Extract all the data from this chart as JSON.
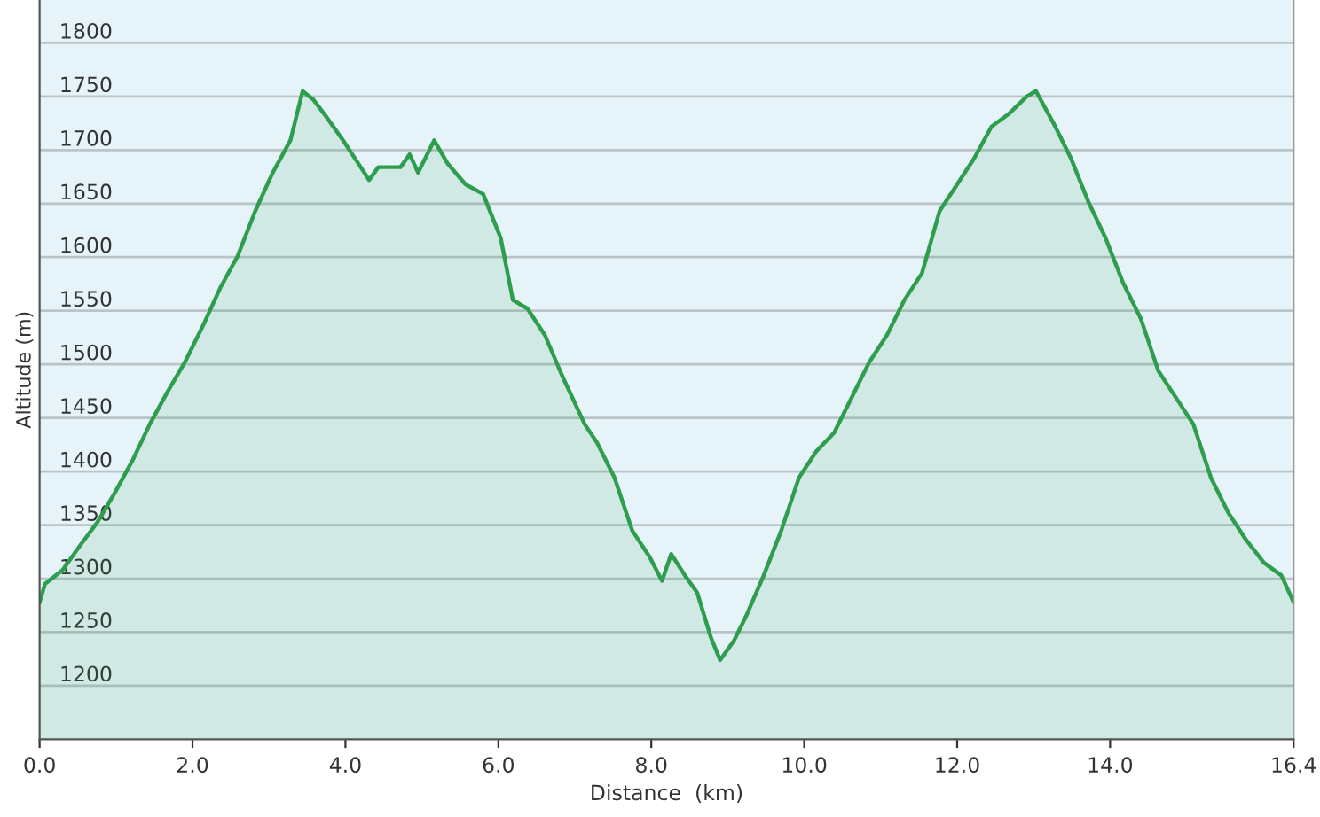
{
  "chart_data": {
    "type": "area",
    "xlabel": "Distance  (km)",
    "ylabel": "Altitude (m)",
    "xlim": [
      0,
      16.4
    ],
    "ylim": [
      1150,
      1840
    ],
    "xticks": [
      {
        "value": 0,
        "label": "0.0"
      },
      {
        "value": 2,
        "label": "2.0"
      },
      {
        "value": 4,
        "label": "4.0"
      },
      {
        "value": 6,
        "label": "6.0"
      },
      {
        "value": 8,
        "label": "8.0"
      },
      {
        "value": 10,
        "label": "10.0"
      },
      {
        "value": 12,
        "label": "12.0"
      },
      {
        "value": 14,
        "label": "14.0"
      },
      {
        "value": 16.4,
        "label": "16.4"
      }
    ],
    "yticks": [
      1200,
      1250,
      1300,
      1350,
      1400,
      1450,
      1500,
      1550,
      1600,
      1650,
      1700,
      1750,
      1800
    ],
    "grid": "y",
    "series": [
      {
        "color": "#2e9e4e",
        "x": [
          0,
          0.07,
          0.3,
          0.53,
          0.76,
          0.99,
          1.22,
          1.44,
          1.67,
          1.9,
          2.13,
          2.36,
          2.59,
          2.82,
          3.05,
          3.28,
          3.44,
          3.58,
          3.74,
          3.97,
          4.2,
          4.31,
          4.43,
          4.72,
          4.84,
          4.95,
          5.16,
          5.34,
          5.57,
          5.8,
          6.03,
          6.19,
          6.38,
          6.61,
          6.83,
          7.13,
          7.29,
          7.52,
          7.75,
          7.98,
          8.14,
          8.26,
          8.44,
          8.6,
          8.78,
          8.9,
          9.08,
          9.24,
          9.47,
          9.7,
          9.93,
          10.16,
          10.39,
          10.62,
          10.85,
          11.08,
          11.31,
          11.54,
          11.77,
          12.0,
          12.22,
          12.45,
          12.68,
          12.91,
          13.03,
          13.26,
          13.49,
          13.72,
          13.94,
          14.17,
          14.4,
          14.63,
          14.86,
          15.09,
          15.32,
          15.55,
          15.78,
          16.01,
          16.24,
          16.4
        ],
        "values": [
          1278,
          1295,
          1308,
          1331,
          1353,
          1381,
          1411,
          1444,
          1474,
          1502,
          1535,
          1571,
          1601,
          1643,
          1679,
          1709,
          1755,
          1747,
          1732,
          1709,
          1684,
          1672,
          1684,
          1684,
          1696,
          1679,
          1709,
          1687,
          1668,
          1659,
          1618,
          1560,
          1552,
          1527,
          1490,
          1444,
          1427,
          1394,
          1345,
          1320,
          1298,
          1323,
          1303,
          1287,
          1245,
          1224,
          1242,
          1265,
          1303,
          1345,
          1394,
          1419,
          1436,
          1469,
          1502,
          1527,
          1560,
          1585,
          1643,
          1668,
          1692,
          1722,
          1734,
          1750,
          1755,
          1725,
          1692,
          1651,
          1618,
          1576,
          1543,
          1494,
          1469,
          1444,
          1394,
          1361,
          1336,
          1315,
          1303,
          1278
        ]
      }
    ]
  }
}
